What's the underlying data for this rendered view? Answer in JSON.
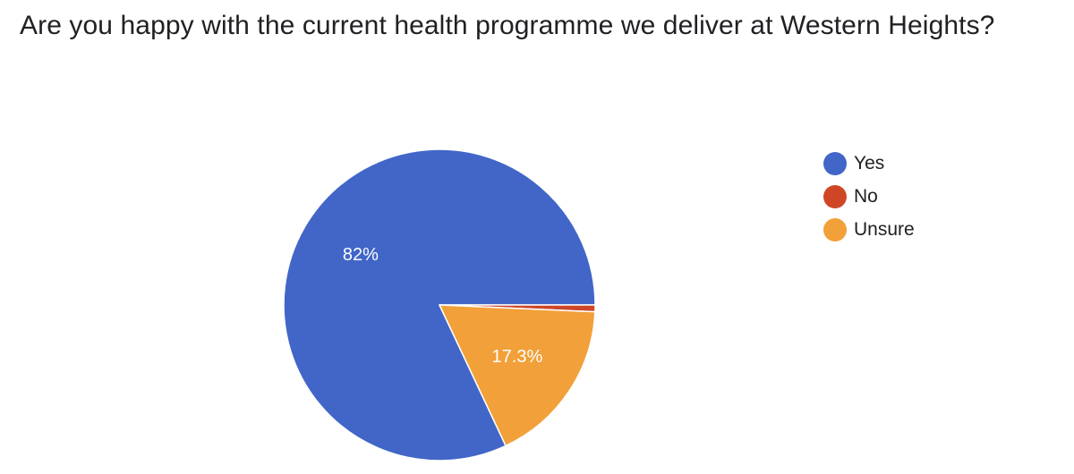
{
  "chart_data": {
    "type": "pie",
    "title": "Are you happy with the current health programme we deliver at Western Heights?",
    "legend_position": "right",
    "slices": [
      {
        "name": "Yes",
        "value": 82.0,
        "label": "82%",
        "color": "#4166c8"
      },
      {
        "name": "No",
        "value": 0.7,
        "label": "",
        "color": "#cf4627"
      },
      {
        "name": "Unsure",
        "value": 17.3,
        "label": "17.3%",
        "color": "#f2a039"
      }
    ]
  }
}
